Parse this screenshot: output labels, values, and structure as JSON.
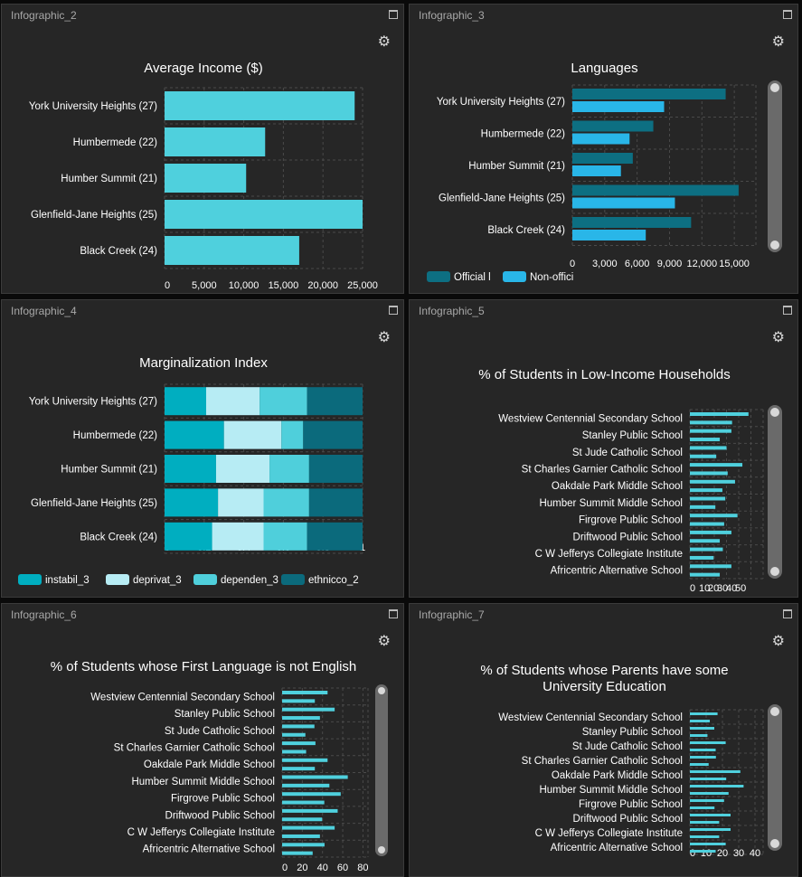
{
  "panels": [
    {
      "title": "Infographic_2",
      "chart_data": {
        "type": "bar",
        "orientation": "horizontal",
        "title": "Average Income ($)",
        "categories": [
          "York University Heights (27)",
          "Humbermede (22)",
          "Humber Summit (21)",
          "Glenfield-Jane Heights (25)",
          "Black Creek (24)"
        ],
        "values": [
          24000,
          12700,
          10300,
          25000,
          17000
        ],
        "xlim": [
          0,
          25000
        ],
        "ticks": [
          "0",
          "5,000",
          "10,000",
          "15,000",
          "20,000",
          "25,000"
        ],
        "grid": true
      }
    },
    {
      "title": "Infographic_3",
      "chart_data": {
        "type": "bar",
        "orientation": "horizontal",
        "title": "Languages",
        "categories": [
          "York University Heights (27)",
          "Humbermede (22)",
          "Humber Summit (21)",
          "Glenfield-Jane Heights (25)",
          "Black Creek (24)"
        ],
        "series": [
          {
            "name": "Official l",
            "color": "#0d6f82",
            "values": [
              14200,
              7500,
              5600,
              15400,
              11000
            ]
          },
          {
            "name": "Non-offici",
            "color": "#29b6e8",
            "values": [
              8500,
              5300,
              4500,
              9500,
              6800
            ]
          }
        ],
        "xlim": [
          0,
          17000
        ],
        "ticks": [
          "0",
          "3,000",
          "6,000",
          "9,000",
          "12,000",
          "15,000"
        ],
        "legend": "bottom-left",
        "grid": true
      }
    },
    {
      "title": "Infographic_4",
      "chart_data": {
        "type": "bar",
        "orientation": "horizontal",
        "stacked": true,
        "title": "Marginalization Index",
        "categories": [
          "York University Heights (27)",
          "Humbermede (22)",
          "Humber Summit (21)",
          "Glenfield-Jane Heights (25)",
          "Black Creek (24)"
        ],
        "series": [
          {
            "name": "instabil_3",
            "color": "#00aec0",
            "values": [
              0.21,
              0.3,
              0.26,
              0.27,
              0.24
            ]
          },
          {
            "name": "deprivat_3",
            "color": "#b7ecf4",
            "values": [
              0.27,
              0.29,
              0.27,
              0.23,
              0.26
            ]
          },
          {
            "name": "dependen_3",
            "color": "#4fcfdb",
            "values": [
              0.24,
              0.11,
              0.2,
              0.23,
              0.22
            ]
          },
          {
            "name": "ethnicco_2",
            "color": "#0b6a7c",
            "values": [
              0.28,
              0.3,
              0.27,
              0.27,
              0.28
            ]
          }
        ],
        "xlim": [
          0,
          1
        ],
        "ticks": [
          "0",
          "0.2",
          "0.4",
          "0.6",
          "0.8",
          "1"
        ],
        "legend": "bottom-left"
      }
    },
    {
      "title": "Infographic_5",
      "chart_data": {
        "type": "bar",
        "orientation": "horizontal",
        "title": "% of Students in Low-Income Households",
        "categories": [
          "Westview Centennial Secondary School",
          "Stanley Public School",
          "St Jude Catholic School",
          "St Charles Garnier Catholic School",
          "Oakdale Park Middle School",
          "Humber Summit Middle School",
          "Firgrove Public School",
          "Driftwood Public School",
          "C W Jefferys Collegiate Institute",
          "Africentric Alternative School"
        ],
        "values": [
          48,
          34,
          30,
          43,
          37,
          29,
          39,
          34,
          27,
          34
        ],
        "xlim": [
          0,
          60
        ],
        "ticks": [
          "0",
          "10",
          "20",
          "30",
          "40",
          "50"
        ],
        "grid": true
      }
    },
    {
      "title": "Infographic_6",
      "chart_data": {
        "type": "bar",
        "orientation": "horizontal",
        "title": "% of Students whose First Language is not English",
        "categories": [
          "Westview Centennial Secondary School",
          "Stanley Public School",
          "St Jude Catholic School",
          "St Charles Garnier Catholic School",
          "Oakdale Park Middle School",
          "Humber Summit Middle School",
          "Firgrove Public School",
          "Driftwood Public School",
          "C W Jefferys Collegiate Institute",
          "Africentric Alternative School"
        ],
        "values": [
          45,
          52,
          32,
          33,
          45,
          65,
          58,
          55,
          52,
          42
        ],
        "xlim": [
          0,
          85
        ],
        "ticks": [
          "0",
          "20",
          "40",
          "60",
          "80"
        ],
        "grid": true
      }
    },
    {
      "title": "Infographic_7",
      "chart_data": {
        "type": "bar",
        "orientation": "horizontal",
        "title": "% of Students whose Parents have some University Education",
        "categories": [
          "Westview Centennial Secondary School",
          "Stanley Public School",
          "St Jude Catholic School",
          "St Charles Garnier Catholic School",
          "Oakdale Park Middle School",
          "Humber Summit Middle School",
          "Firgrove Public School",
          "Driftwood Public School",
          "C W Jefferys Collegiate Institute",
          "Africentric Alternative School"
        ],
        "values": [
          17,
          15,
          22,
          16,
          31,
          33,
          21,
          25,
          25,
          22
        ],
        "xlim": [
          0,
          45
        ],
        "ticks": [
          "0",
          "10",
          "20",
          "30",
          "40"
        ],
        "grid": true
      }
    }
  ]
}
